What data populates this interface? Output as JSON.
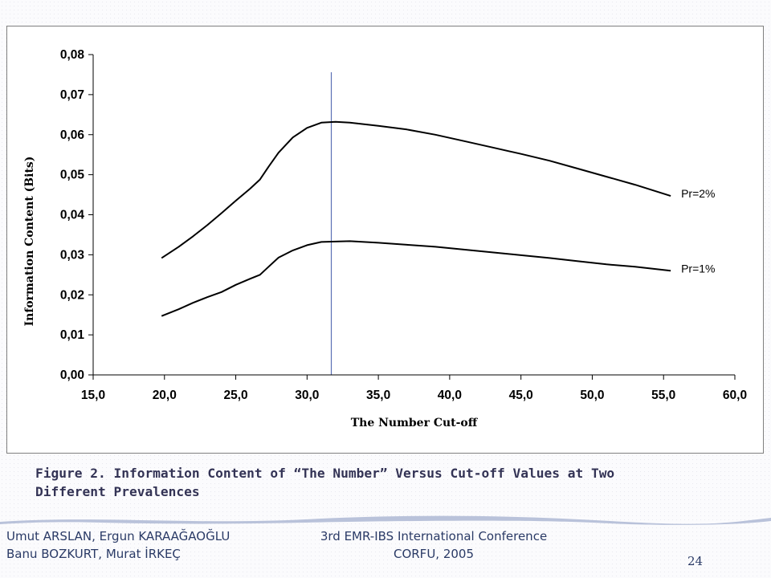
{
  "chart_data": {
    "type": "line",
    "title": "",
    "xlabel": "The Number Cut-off",
    "ylabel": "Information Content (Bits)",
    "xlim": [
      15.0,
      60.0
    ],
    "ylim": [
      0.0,
      0.08
    ],
    "x_ticks": [
      "15,0",
      "20,0",
      "25,0",
      "30,0",
      "35,0",
      "40,0",
      "45,0",
      "50,0",
      "55,0",
      "60,0"
    ],
    "y_ticks": [
      "0,00",
      "0,01",
      "0,02",
      "0,03",
      "0,04",
      "0,05",
      "0,06",
      "0,07",
      "0,08"
    ],
    "x_tick_values": [
      15,
      20,
      25,
      30,
      35,
      40,
      45,
      50,
      55,
      60
    ],
    "y_tick_values": [
      0,
      0.01,
      0.02,
      0.03,
      0.04,
      0.05,
      0.06,
      0.07,
      0.08
    ],
    "grid": false,
    "reference_line_x": 31.7,
    "series": [
      {
        "name": "Pr=2%",
        "color": "#000000",
        "x": [
          19.8,
          21.0,
          22.0,
          23.0,
          24.0,
          25.0,
          26.0,
          26.7,
          27.3,
          28.0,
          29.0,
          30.0,
          31.0,
          32.0,
          33.0,
          35.0,
          37.0,
          39.0,
          41.0,
          43.0,
          45.0,
          47.0,
          49.0,
          51.0,
          53.0,
          55.5
        ],
        "values": [
          0.0292,
          0.032,
          0.0346,
          0.0374,
          0.0404,
          0.0435,
          0.0465,
          0.0488,
          0.052,
          0.0555,
          0.0593,
          0.0617,
          0.063,
          0.0632,
          0.063,
          0.0622,
          0.0613,
          0.06,
          0.0584,
          0.0568,
          0.0552,
          0.0535,
          0.0515,
          0.0495,
          0.0475,
          0.0447
        ]
      },
      {
        "name": "Pr=1%",
        "color": "#000000",
        "x": [
          19.8,
          21.0,
          22.0,
          23.0,
          24.0,
          25.0,
          26.0,
          26.7,
          27.3,
          28.0,
          29.0,
          30.0,
          31.0,
          32.0,
          33.0,
          35.0,
          37.0,
          39.0,
          41.0,
          43.0,
          45.0,
          47.0,
          49.0,
          51.0,
          53.0,
          55.5
        ],
        "values": [
          0.0147,
          0.0164,
          0.018,
          0.0194,
          0.0207,
          0.0225,
          0.024,
          0.025,
          0.027,
          0.0293,
          0.0311,
          0.0324,
          0.0332,
          0.0333,
          0.0334,
          0.033,
          0.0325,
          0.032,
          0.0313,
          0.0306,
          0.0299,
          0.0292,
          0.0284,
          0.0276,
          0.027,
          0.026
        ]
      }
    ]
  },
  "caption": {
    "line1": "Figure 2. Information Content of “The Number” Versus Cut-off Values at Two",
    "line2": "Different Prevalences"
  },
  "footer": {
    "authors_line1": "Umut ARSLAN, Ergun KARAAĞAOĞLU",
    "authors_line2": "Banu BOZKURT, Murat İRKEÇ",
    "conference_line1": "3rd EMR-IBS International Conference",
    "conference_line2": "CORFU, 2005",
    "page_number": "24"
  },
  "colors": {
    "axis": "#000000",
    "reference_line": "#5a6fb4",
    "caption_text": "#333355",
    "footer_text": "#2a3a66",
    "wave": "#b9c2da"
  }
}
